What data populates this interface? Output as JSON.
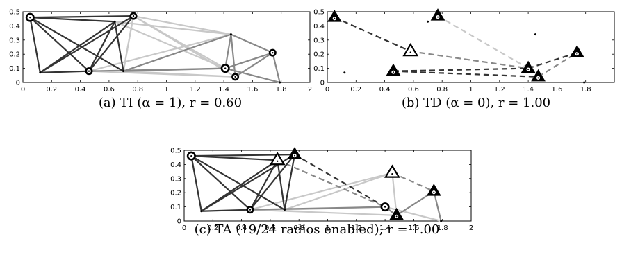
{
  "figure": {
    "panels": [
      {
        "id": "a",
        "caption": "(a) TI (α = 1), r = 0.60",
        "x_ticks": [
          "0",
          "0.2",
          "0.4",
          "0.6",
          "0.8",
          "1",
          "1.2",
          "1.4",
          "1.6",
          "1.8",
          "2"
        ],
        "y_ticks": [
          "0",
          "0.1",
          "0.2",
          "0.3",
          "0.4",
          "0.5"
        ]
      },
      {
        "id": "b",
        "caption": "(b) TD (α = 0), r = 1.00",
        "x_ticks": [
          "0",
          "0.2",
          "0.4",
          "0.6",
          "0.8",
          "1",
          "1.2",
          "1.4",
          "1.6",
          "1.8"
        ],
        "y_ticks": [
          "0",
          "0.1",
          "0.2",
          "0.3",
          "0.4",
          "0.5"
        ]
      },
      {
        "id": "c",
        "caption": "(c) TA (19/24 radios enabled), r = 1.00",
        "x_ticks": [
          "0",
          "0.2",
          "0.4",
          "0.6",
          "0.8",
          "1",
          "1.2",
          "1.4",
          "1.6",
          "1.8",
          "2"
        ],
        "y_ticks": [
          "0",
          "0.1",
          "0.2",
          "0.3",
          "0.4",
          "0.5"
        ]
      }
    ]
  },
  "colors": {
    "dark": "#333333",
    "mid": "#888888",
    "light": "#c8c8c8",
    "black": "#000000"
  },
  "chart_data": [
    {
      "type": "scatter",
      "panel": "a",
      "xlim": [
        0,
        2
      ],
      "ylim": [
        0,
        0.5
      ],
      "nodes": [
        {
          "x": 0.05,
          "y": 0.46,
          "marker": "bullseye-large"
        },
        {
          "x": 0.77,
          "y": 0.47,
          "marker": "bullseye"
        },
        {
          "x": 0.46,
          "y": 0.08,
          "marker": "bullseye"
        },
        {
          "x": 1.41,
          "y": 0.1,
          "marker": "bullseye-large"
        },
        {
          "x": 1.48,
          "y": 0.04,
          "marker": "bullseye"
        },
        {
          "x": 1.74,
          "y": 0.21,
          "marker": "bullseye"
        },
        {
          "x": 0.12,
          "y": 0.07,
          "marker": "dot"
        },
        {
          "x": 0.64,
          "y": 0.43,
          "marker": "dot"
        },
        {
          "x": 0.7,
          "y": 0.08,
          "marker": "dot"
        },
        {
          "x": 1.45,
          "y": 0.34,
          "marker": "dot"
        },
        {
          "x": 1.79,
          "y": 0.0,
          "marker": "dot"
        }
      ],
      "edges_dark": [
        [
          0.05,
          0.46,
          0.77,
          0.47
        ],
        [
          0.05,
          0.46,
          0.12,
          0.07
        ],
        [
          0.05,
          0.46,
          0.46,
          0.08
        ],
        [
          0.05,
          0.46,
          0.64,
          0.43
        ],
        [
          0.05,
          0.46,
          0.7,
          0.08
        ],
        [
          0.12,
          0.07,
          0.64,
          0.43
        ],
        [
          0.12,
          0.07,
          0.77,
          0.47
        ],
        [
          0.46,
          0.08,
          0.64,
          0.43
        ],
        [
          0.46,
          0.08,
          0.77,
          0.47
        ],
        [
          0.64,
          0.43,
          0.7,
          0.08
        ],
        [
          0.12,
          0.07,
          0.46,
          0.08
        ]
      ],
      "edges_mid": [
        [
          0.46,
          0.08,
          1.41,
          0.1
        ],
        [
          0.7,
          0.08,
          1.41,
          0.1
        ],
        [
          1.41,
          0.1,
          1.45,
          0.34
        ],
        [
          1.45,
          0.34,
          1.74,
          0.21
        ],
        [
          1.74,
          0.21,
          1.79,
          0.0
        ],
        [
          1.45,
          0.34,
          1.48,
          0.04
        ],
        [
          1.41,
          0.1,
          1.74,
          0.21
        ],
        [
          1.48,
          0.04,
          1.74,
          0.21
        ],
        [
          0.7,
          0.08,
          1.45,
          0.34
        ],
        [
          1.41,
          0.1,
          1.79,
          0.0
        ]
      ],
      "edges_light": [
        [
          0.77,
          0.47,
          1.45,
          0.34
        ],
        [
          0.77,
          0.47,
          1.41,
          0.1
        ],
        [
          0.64,
          0.43,
          1.45,
          0.34
        ],
        [
          0.77,
          0.47,
          1.48,
          0.04
        ],
        [
          0.64,
          0.43,
          1.41,
          0.1
        ],
        [
          0.64,
          0.43,
          0.46,
          0.08
        ],
        [
          0.77,
          0.47,
          0.7,
          0.08
        ],
        [
          0.46,
          0.08,
          1.48,
          0.04
        ],
        [
          0.7,
          0.08,
          1.48,
          0.04
        ],
        [
          0.46,
          0.08,
          1.45,
          0.34
        ],
        [
          0.7,
          0.08,
          0.77,
          0.47
        ]
      ]
    },
    {
      "type": "scatter",
      "panel": "b",
      "xlim": [
        0,
        2
      ],
      "ylim": [
        0,
        0.5
      ],
      "nodes": [
        {
          "x": 0.05,
          "y": 0.46,
          "marker": "triangle"
        },
        {
          "x": 0.77,
          "y": 0.47,
          "marker": "triangle"
        },
        {
          "x": 0.58,
          "y": 0.22,
          "marker": "triangle-open"
        },
        {
          "x": 0.46,
          "y": 0.08,
          "marker": "triangle"
        },
        {
          "x": 1.4,
          "y": 0.1,
          "marker": "triangle"
        },
        {
          "x": 1.47,
          "y": 0.04,
          "marker": "triangle"
        },
        {
          "x": 1.74,
          "y": 0.21,
          "marker": "triangle"
        },
        {
          "x": 0.12,
          "y": 0.07,
          "marker": "dot"
        },
        {
          "x": 0.7,
          "y": 0.43,
          "marker": "dot"
        },
        {
          "x": 1.45,
          "y": 0.34,
          "marker": "dot"
        },
        {
          "x": 1.79,
          "y": 0.0,
          "marker": "dot"
        }
      ],
      "edges_dark_dashed": [
        [
          0.05,
          0.46,
          0.58,
          0.22
        ],
        [
          0.46,
          0.08,
          1.4,
          0.1
        ],
        [
          1.4,
          0.1,
          1.74,
          0.21
        ],
        [
          0.46,
          0.08,
          1.47,
          0.04
        ]
      ],
      "edges_mid_dashed": [
        [
          0.58,
          0.22,
          1.4,
          0.1
        ],
        [
          1.47,
          0.04,
          1.74,
          0.21
        ]
      ],
      "edges_light_dashed": [
        [
          0.77,
          0.47,
          1.4,
          0.1
        ]
      ]
    },
    {
      "type": "scatter",
      "panel": "c",
      "xlim": [
        0,
        2
      ],
      "ylim": [
        0,
        0.5
      ],
      "nodes": [
        {
          "x": 0.05,
          "y": 0.46,
          "marker": "bullseye-large"
        },
        {
          "x": 0.65,
          "y": 0.43,
          "marker": "triangle-open"
        },
        {
          "x": 0.77,
          "y": 0.47,
          "marker": "triangle"
        },
        {
          "x": 0.46,
          "y": 0.08,
          "marker": "bullseye"
        },
        {
          "x": 1.4,
          "y": 0.1,
          "marker": "bullseye-large"
        },
        {
          "x": 1.45,
          "y": 0.34,
          "marker": "triangle-open"
        },
        {
          "x": 1.48,
          "y": 0.04,
          "marker": "triangle"
        },
        {
          "x": 1.74,
          "y": 0.21,
          "marker": "triangle"
        },
        {
          "x": 0.12,
          "y": 0.07,
          "marker": "dot"
        },
        {
          "x": 0.7,
          "y": 0.08,
          "marker": "dot"
        },
        {
          "x": 1.79,
          "y": 0.0,
          "marker": "dot"
        }
      ],
      "edges_dark": [
        [
          0.05,
          0.46,
          0.77,
          0.47
        ],
        [
          0.05,
          0.46,
          0.12,
          0.07
        ],
        [
          0.05,
          0.46,
          0.46,
          0.08
        ],
        [
          0.05,
          0.46,
          0.65,
          0.43
        ],
        [
          0.05,
          0.46,
          0.7,
          0.08
        ],
        [
          0.12,
          0.07,
          0.65,
          0.43
        ],
        [
          0.12,
          0.07,
          0.77,
          0.47
        ],
        [
          0.46,
          0.08,
          0.65,
          0.43
        ],
        [
          0.46,
          0.08,
          0.77,
          0.47
        ],
        [
          0.65,
          0.43,
          0.7,
          0.08
        ],
        [
          0.12,
          0.07,
          0.46,
          0.08
        ],
        [
          0.7,
          0.08,
          0.77,
          0.47
        ]
      ],
      "edges_dark_dashed": [
        [
          0.77,
          0.47,
          1.4,
          0.1
        ]
      ],
      "edges_mid": [
        [
          0.46,
          0.08,
          1.4,
          0.1
        ],
        [
          1.4,
          0.1,
          1.48,
          0.04
        ],
        [
          1.48,
          0.04,
          1.74,
          0.21
        ],
        [
          1.74,
          0.21,
          1.79,
          0.0
        ]
      ],
      "edges_mid_dashed": [
        [
          0.65,
          0.43,
          1.4,
          0.1
        ],
        [
          1.45,
          0.34,
          1.74,
          0.21
        ]
      ],
      "edges_light": [
        [
          0.46,
          0.08,
          1.45,
          0.34
        ],
        [
          0.7,
          0.08,
          1.45,
          0.34
        ],
        [
          1.45,
          0.34,
          1.48,
          0.04
        ],
        [
          0.46,
          0.08,
          1.48,
          0.04
        ],
        [
          0.7,
          0.08,
          1.4,
          0.1
        ],
        [
          1.4,
          0.1,
          1.79,
          0.0
        ]
      ]
    }
  ]
}
